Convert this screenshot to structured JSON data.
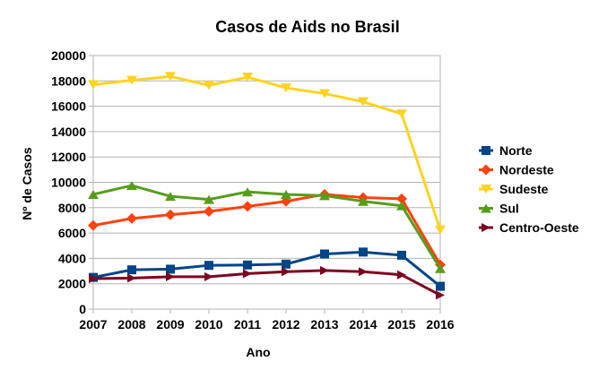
{
  "chart_data": {
    "type": "line",
    "title": "Casos de Aids no Brasil",
    "xlabel": "Ano",
    "ylabel": "Nº de Casos",
    "categories": [
      "2007",
      "2008",
      "2009",
      "2010",
      "2011",
      "2012",
      "2013",
      "2014",
      "2015",
      "2016"
    ],
    "ylim": [
      0,
      20000
    ],
    "yticks": [
      0,
      2000,
      4000,
      6000,
      8000,
      10000,
      12000,
      14000,
      16000,
      18000,
      20000
    ],
    "grid": true,
    "legend_position": "right",
    "series": [
      {
        "name": "Norte",
        "color": "#004586",
        "marker": "square",
        "values": [
          2500,
          3100,
          3150,
          3450,
          3480,
          3550,
          4350,
          4500,
          4250,
          1800
        ]
      },
      {
        "name": "Nordeste",
        "color": "#ff420e",
        "marker": "diamond",
        "values": [
          6600,
          7150,
          7450,
          7700,
          8100,
          8500,
          9050,
          8800,
          8700,
          3500
        ]
      },
      {
        "name": "Sudeste",
        "color": "#ffd320",
        "marker": "triangle-down",
        "values": [
          17700,
          18050,
          18350,
          17650,
          18300,
          17450,
          17000,
          16350,
          15400,
          6250
        ]
      },
      {
        "name": "Sul",
        "color": "#579d1c",
        "marker": "triangle-up",
        "values": [
          9050,
          9750,
          8900,
          8650,
          9250,
          9050,
          8950,
          8500,
          8150,
          3200
        ]
      },
      {
        "name": "Centro-Oeste",
        "color": "#7e0021",
        "marker": "arrow-right",
        "values": [
          2400,
          2450,
          2550,
          2550,
          2800,
          2950,
          3050,
          2950,
          2700,
          1100
        ]
      }
    ]
  }
}
